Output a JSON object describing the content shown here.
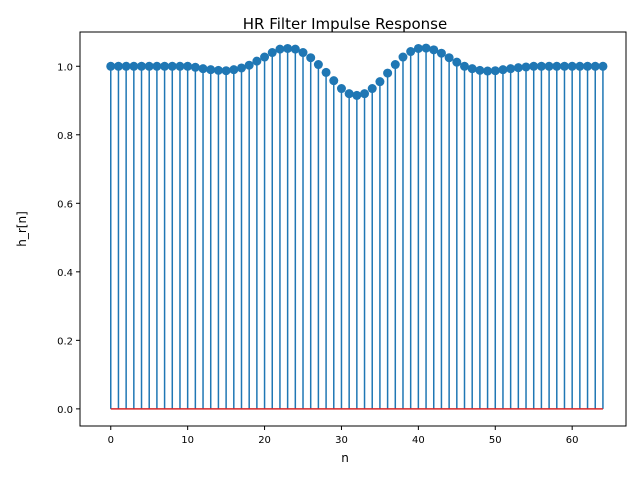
{
  "chart_data": {
    "type": "stem",
    "title": "HR Filter Impulse Response",
    "xlabel": "n",
    "ylabel": "h_r[n]",
    "xlim": [
      -4,
      67
    ],
    "ylim": [
      -0.05,
      1.1
    ],
    "xticks": [
      0,
      10,
      20,
      30,
      40,
      50,
      60
    ],
    "yticks": [
      0.0,
      0.2,
      0.4,
      0.6,
      0.8,
      1.0
    ],
    "ytick_labels": [
      "0.0",
      "0.2",
      "0.4",
      "0.6",
      "0.8",
      "1.0"
    ],
    "baseline": 0,
    "series": [
      {
        "x": [
          0,
          1,
          2,
          3,
          4,
          5,
          6,
          7,
          8,
          9,
          10,
          11,
          12,
          13,
          14,
          15,
          16,
          17,
          18,
          19,
          20,
          21,
          22,
          23,
          24,
          25,
          26,
          27,
          28,
          29,
          30,
          31,
          32,
          33,
          34,
          35,
          36,
          37,
          38,
          39,
          40,
          41,
          42,
          43,
          44,
          45,
          46,
          47,
          48,
          49,
          50,
          51,
          52,
          53,
          54,
          55,
          56,
          57,
          58,
          59,
          60,
          61,
          62,
          63,
          64
        ],
        "values": [
          1.0,
          1.0,
          1.0,
          1.0,
          1.0,
          1.0,
          1.0,
          1.0,
          1.0,
          1.0,
          1.0,
          0.997,
          0.993,
          0.99,
          0.988,
          0.987,
          0.99,
          0.995,
          1.003,
          1.015,
          1.027,
          1.04,
          1.05,
          1.052,
          1.05,
          1.04,
          1.025,
          1.005,
          0.982,
          0.958,
          0.935,
          0.92,
          0.915,
          0.92,
          0.935,
          0.955,
          0.98,
          1.005,
          1.027,
          1.043,
          1.052,
          1.053,
          1.048,
          1.038,
          1.025,
          1.012,
          1.0,
          0.993,
          0.988,
          0.986,
          0.987,
          0.99,
          0.993,
          0.996,
          0.998,
          1.0,
          1.0,
          1.0,
          1.0,
          1.0,
          1.0,
          1.0,
          1.0,
          1.0,
          1.0
        ]
      }
    ],
    "colors": {
      "stem": "#1f77b4",
      "marker": "#1f77b4",
      "baseline": "#d62728",
      "axes": "#000000"
    },
    "grid": false
  }
}
